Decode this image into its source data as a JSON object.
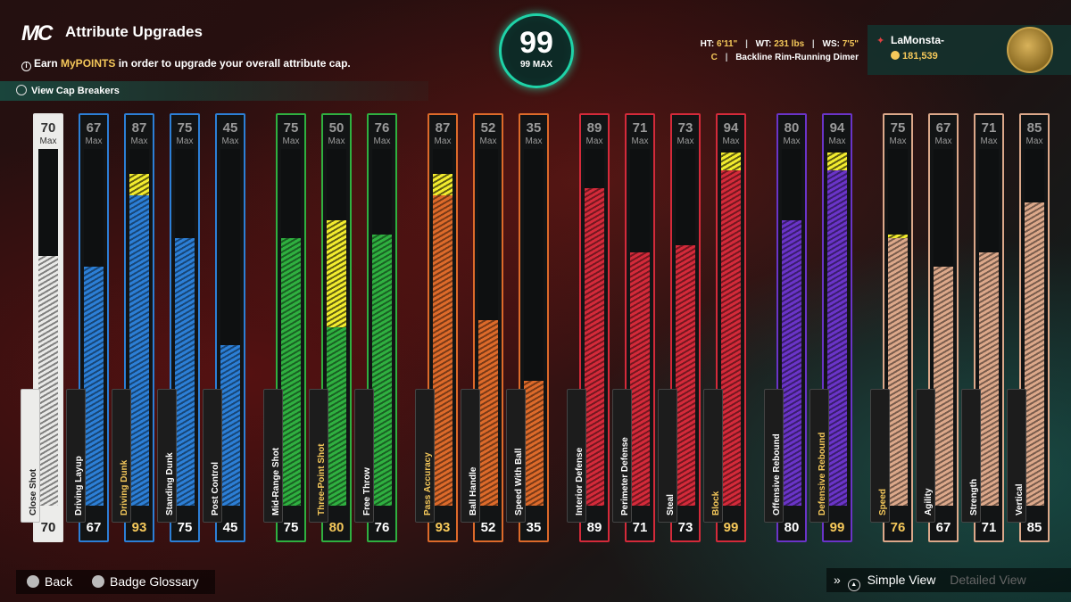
{
  "header": {
    "logo": "MC",
    "title": "Attribute Upgrades",
    "subtitle_pre": "Earn ",
    "subtitle_highlight": "MyPOINTS",
    "subtitle_post": " in order to upgrade your overall attribute cap.",
    "cap_breakers_label": "View Cap Breakers"
  },
  "overall": {
    "value": "99",
    "max_label": "99 MAX"
  },
  "player": {
    "ht_label": "HT:",
    "ht": "6'11\"",
    "wt_label": "WT:",
    "wt": "231 lbs",
    "ws_label": "WS:",
    "ws": "7'5\"",
    "position": "C",
    "archetype": "Backline Rim-Running Dimer",
    "username": "LaMonsta-",
    "vc": "181,539"
  },
  "max_word": "Max",
  "colors": {
    "inside": "#2c7fd6",
    "shooting": "#2fb040",
    "playmaking": "#dd6a2a",
    "defense": "#d42a3a",
    "rebounding": "#6a34c8",
    "athleticism": "#dca88a",
    "boost": "#f2ec2e",
    "accent": "#1fd3a8",
    "gold": "#f5c85a"
  },
  "attributes": [
    {
      "name": "Close Shot",
      "cap": "70",
      "value": "70",
      "fill": 70,
      "boost": 0,
      "color": "#e9e9e7",
      "selected": true
    },
    {
      "name": "Driving Layup",
      "cap": "67",
      "value": "67",
      "fill": 67,
      "boost": 0,
      "color": "#2c7fd6"
    },
    {
      "name": "Driving Dunk",
      "cap": "87",
      "value": "93",
      "fill": 87,
      "boost": 6,
      "color": "#2c7fd6",
      "gold": true
    },
    {
      "name": "Standing Dunk",
      "cap": "75",
      "value": "75",
      "fill": 75,
      "boost": 0,
      "color": "#2c7fd6"
    },
    {
      "name": "Post Control",
      "cap": "45",
      "value": "45",
      "fill": 45,
      "boost": 0,
      "color": "#2c7fd6"
    },
    {
      "name": "Mid-Range Shot",
      "cap": "75",
      "value": "75",
      "fill": 75,
      "boost": 0,
      "color": "#2fb040"
    },
    {
      "name": "Three-Point Shot",
      "cap": "50",
      "value": "80",
      "fill": 50,
      "boost": 30,
      "color": "#2fb040",
      "gold": true
    },
    {
      "name": "Free Throw",
      "cap": "76",
      "value": "76",
      "fill": 76,
      "boost": 0,
      "color": "#2fb040"
    },
    {
      "name": "Pass Accuracy",
      "cap": "87",
      "value": "93",
      "fill": 87,
      "boost": 6,
      "color": "#dd6a2a",
      "gold": true
    },
    {
      "name": "Ball Handle",
      "cap": "52",
      "value": "52",
      "fill": 52,
      "boost": 0,
      "color": "#dd6a2a"
    },
    {
      "name": "Speed With Ball",
      "cap": "35",
      "value": "35",
      "fill": 35,
      "boost": 0,
      "color": "#dd6a2a"
    },
    {
      "name": "Interior Defense",
      "cap": "89",
      "value": "89",
      "fill": 89,
      "boost": 0,
      "color": "#d42a3a"
    },
    {
      "name": "Perimeter Defense",
      "cap": "71",
      "value": "71",
      "fill": 71,
      "boost": 0,
      "color": "#d42a3a"
    },
    {
      "name": "Steal",
      "cap": "73",
      "value": "73",
      "fill": 73,
      "boost": 0,
      "color": "#d42a3a"
    },
    {
      "name": "Block",
      "cap": "94",
      "value": "99",
      "fill": 94,
      "boost": 5,
      "color": "#d42a3a",
      "gold": true
    },
    {
      "name": "Offensive Rebound",
      "cap": "80",
      "value": "80",
      "fill": 80,
      "boost": 0,
      "color": "#6a34c8"
    },
    {
      "name": "Defensive Rebound",
      "cap": "94",
      "value": "99",
      "fill": 94,
      "boost": 5,
      "color": "#6a34c8",
      "gold": true
    },
    {
      "name": "Speed",
      "cap": "75",
      "value": "76",
      "fill": 75,
      "boost": 1,
      "color": "#dca88a",
      "gold": true
    },
    {
      "name": "Agility",
      "cap": "67",
      "value": "67",
      "fill": 67,
      "boost": 0,
      "color": "#dca88a"
    },
    {
      "name": "Strength",
      "cap": "71",
      "value": "71",
      "fill": 71,
      "boost": 0,
      "color": "#dca88a"
    },
    {
      "name": "Vertical",
      "cap": "85",
      "value": "85",
      "fill": 85,
      "boost": 0,
      "color": "#dca88a"
    }
  ],
  "footer": {
    "back": "Back",
    "badge_glossary": "Badge Glossary",
    "simple_view": "Simple View",
    "detailed_view": "Detailed View"
  }
}
